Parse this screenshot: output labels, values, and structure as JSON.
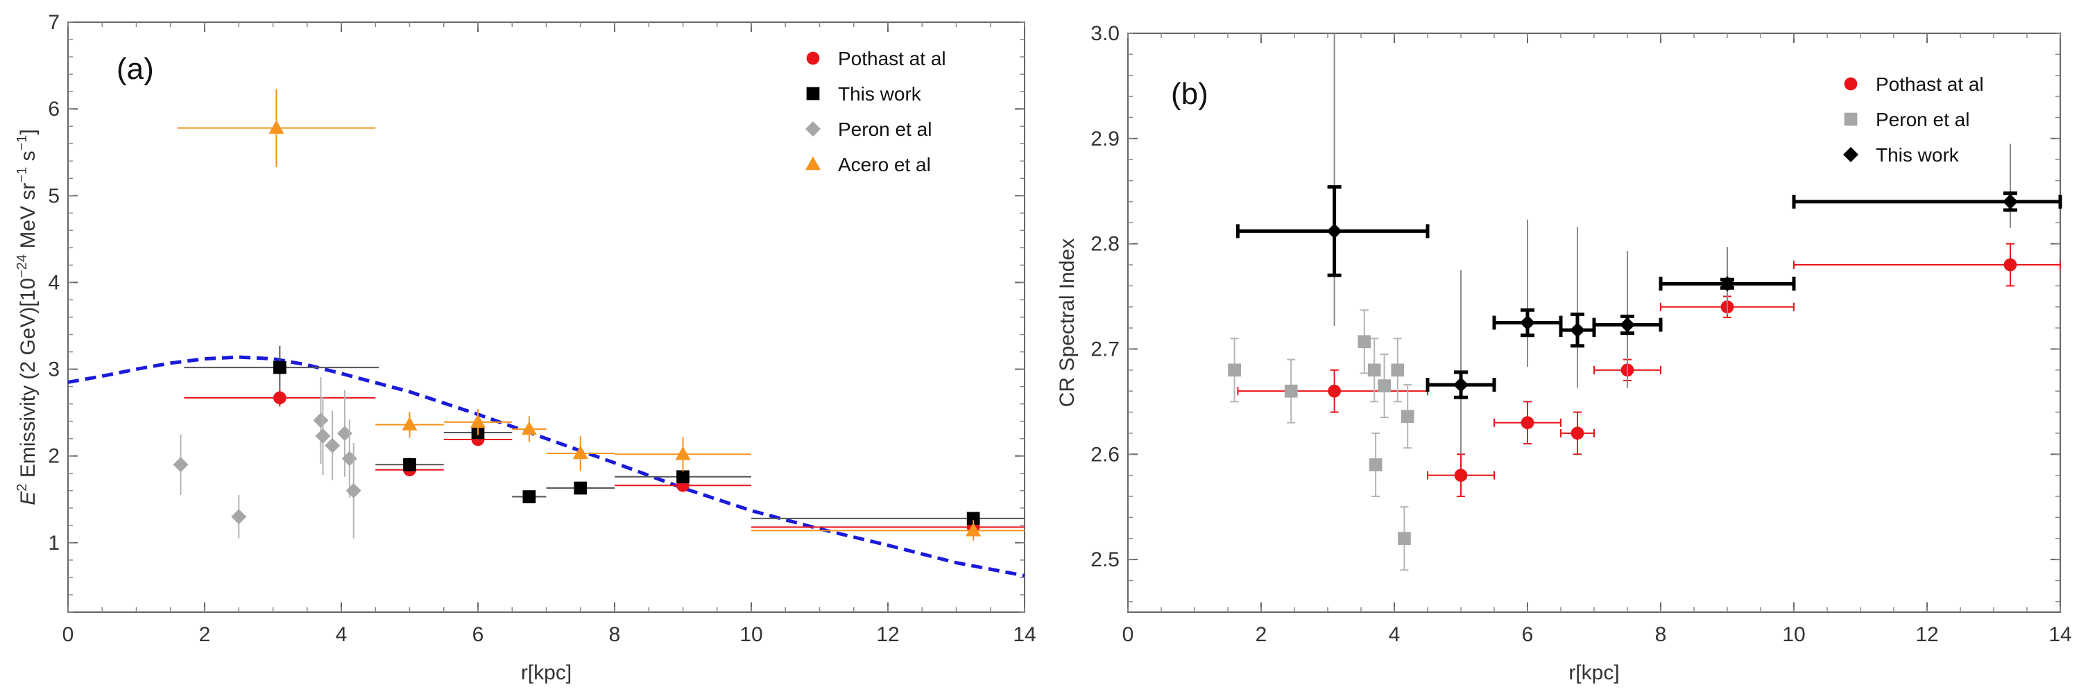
{
  "chart_data": [
    {
      "panel": "(a)",
      "type": "scatter",
      "xlabel": "r[kpc]",
      "ylabel_parts": [
        "E",
        "2",
        " Emissivity (2 GeV)[10",
        "−24",
        " MeV sr",
        "−1",
        " s",
        "−1",
        "]"
      ],
      "xlim": [
        0,
        14
      ],
      "ylim": [
        0.2,
        7
      ],
      "xticks": [
        0,
        2,
        4,
        6,
        8,
        10,
        12,
        14
      ],
      "yticks": [
        1,
        2,
        3,
        4,
        5,
        6,
        7
      ],
      "legend_position": "top-right",
      "series": [
        {
          "name": "Pothast at al",
          "marker": "circle",
          "color": "#e8141a",
          "bar_color": "#e8141a",
          "points": [
            {
              "x": 3.1,
              "y": 2.67,
              "xerr": [
                1.4,
                1.4
              ],
              "yerr": 0.1
            },
            {
              "x": 5.0,
              "y": 1.84,
              "xerr": [
                0.5,
                0.5
              ],
              "yerr": 0.05
            },
            {
              "x": 6.0,
              "y": 2.19,
              "xerr": [
                0.5,
                0.5
              ],
              "yerr": 0.05
            },
            {
              "x": 9.0,
              "y": 1.66,
              "xerr": [
                1.0,
                1.0
              ],
              "yerr": 0.05
            },
            {
              "x": 13.25,
              "y": 1.18,
              "xerr": [
                3.25,
                0.75
              ],
              "yerr": 0.05
            }
          ]
        },
        {
          "name": "This work",
          "marker": "square",
          "color": "#000000",
          "bar_color": "#555555",
          "points": [
            {
              "x": 3.1,
              "y": 3.02,
              "xerr": [
                1.4,
                1.45
              ],
              "yerr": 0.25
            },
            {
              "x": 5.0,
              "y": 1.9,
              "xerr": [
                0.5,
                0.5
              ],
              "yerr": 0.08
            },
            {
              "x": 6.0,
              "y": 2.27,
              "xerr": [
                0.5,
                0.5
              ],
              "yerr": 0.08
            },
            {
              "x": 6.75,
              "y": 1.53,
              "xerr": [
                0.25,
                0.25
              ],
              "yerr": 0.04
            },
            {
              "x": 7.5,
              "y": 1.63,
              "xerr": [
                0.5,
                0.5
              ],
              "yerr": 0.04
            },
            {
              "x": 9.0,
              "y": 1.76,
              "xerr": [
                1.0,
                1.0
              ],
              "yerr": 0.08
            },
            {
              "x": 13.25,
              "y": 1.28,
              "xerr": [
                3.25,
                0.75
              ],
              "yerr": 0.04
            }
          ]
        },
        {
          "name": "Peron et al",
          "marker": "diamond",
          "color": "#a6a6a6",
          "bar_color": "#b4b4b4",
          "points": [
            {
              "x": 1.65,
              "y": 1.9,
              "xerr": [
                0,
                0
              ],
              "yerr": 0.35
            },
            {
              "x": 2.5,
              "y": 1.3,
              "xerr": [
                0,
                0
              ],
              "yerr": 0.25
            },
            {
              "x": 3.7,
              "y": 2.41,
              "xerr": [
                0,
                0
              ],
              "yerr": 0.5
            },
            {
              "x": 3.73,
              "y": 2.23,
              "xerr": [
                0,
                0
              ],
              "yerr": 0.45
            },
            {
              "x": 3.87,
              "y": 2.12,
              "xerr": [
                0,
                0
              ],
              "yerr": 0.4
            },
            {
              "x": 4.05,
              "y": 2.26,
              "xerr": [
                0,
                0
              ],
              "yerr": 0.5
            },
            {
              "x": 4.12,
              "y": 1.97,
              "xerr": [
                0,
                0
              ],
              "yerr": 0.45
            },
            {
              "x": 4.18,
              "y": 1.6,
              "xerr": [
                0,
                0
              ],
              "yerr": 0.55
            }
          ]
        },
        {
          "name": "Acero et al",
          "marker": "triangle",
          "color": "#f7941d",
          "bar_color": "#f7941d",
          "points": [
            {
              "x": 3.05,
              "y": 5.78,
              "xerr": [
                1.45,
                1.45
              ],
              "yerr": 0.45
            },
            {
              "x": 5.0,
              "y": 2.36,
              "xerr": [
                0.5,
                0.5
              ],
              "yerr": 0.15
            },
            {
              "x": 6.0,
              "y": 2.39,
              "xerr": [
                0.5,
                0.5
              ],
              "yerr": 0.15
            },
            {
              "x": 6.75,
              "y": 2.31,
              "xerr": [
                0.25,
                0.25
              ],
              "yerr": 0.15
            },
            {
              "x": 7.5,
              "y": 2.03,
              "xerr": [
                0.5,
                0.5
              ],
              "yerr": 0.2
            },
            {
              "x": 9.0,
              "y": 2.02,
              "xerr": [
                1.0,
                1.0
              ],
              "yerr": 0.2
            },
            {
              "x": 13.25,
              "y": 1.14,
              "xerr": [
                3.25,
                0.75
              ],
              "yerr": 0.12
            }
          ]
        }
      ],
      "model_curve": {
        "style": "dashed",
        "color": "#1a1adb",
        "x": [
          0,
          0.5,
          1,
          1.5,
          2,
          2.5,
          3,
          3.5,
          4,
          5,
          6,
          7,
          8,
          9,
          10,
          11,
          12,
          13,
          14
        ],
        "y": [
          2.85,
          2.92,
          3.0,
          3.07,
          3.12,
          3.14,
          3.12,
          3.05,
          2.95,
          2.74,
          2.48,
          2.2,
          1.92,
          1.63,
          1.37,
          1.16,
          0.97,
          0.77,
          0.62
        ]
      }
    },
    {
      "panel": "(b)",
      "type": "scatter",
      "xlabel": "r[kpc]",
      "ylabel": "CR Spectral Index",
      "xlim": [
        0,
        14
      ],
      "ylim": [
        2.45,
        3.0
      ],
      "xticks": [
        0,
        2,
        4,
        6,
        8,
        10,
        12,
        14
      ],
      "yticks": [
        2.5,
        2.6,
        2.7,
        2.8,
        2.9,
        3.0
      ],
      "legend_position": "top-right",
      "series": [
        {
          "name": "Pothast at al",
          "marker": "circle",
          "color": "#e8141a",
          "bar_color": "#e8141a",
          "points": [
            {
              "x": 3.1,
              "y": 2.66,
              "xerr": [
                1.45,
                1.4
              ],
              "yerr": 0.02
            },
            {
              "x": 5.0,
              "y": 2.58,
              "xerr": [
                0.5,
                0.5
              ],
              "yerr": 0.02
            },
            {
              "x": 6.0,
              "y": 2.63,
              "xerr": [
                0.5,
                0.5
              ],
              "yerr": 0.02
            },
            {
              "x": 6.75,
              "y": 2.62,
              "xerr": [
                0.25,
                0.25
              ],
              "yerr": 0.02
            },
            {
              "x": 7.5,
              "y": 2.68,
              "xerr": [
                0.5,
                0.5
              ],
              "yerr": 0.01
            },
            {
              "x": 9.0,
              "y": 2.74,
              "xerr": [
                1.0,
                1.0
              ],
              "yerr": 0.01
            },
            {
              "x": 13.25,
              "y": 2.78,
              "xerr": [
                3.25,
                0.75
              ],
              "yerr": 0.02
            }
          ]
        },
        {
          "name": "Peron et al",
          "marker": "square",
          "color": "#a6a6a6",
          "bar_color": "#b4b4b4",
          "points": [
            {
              "x": 1.6,
              "y": 2.68,
              "xerr": [
                0,
                0
              ],
              "yerr": 0.03
            },
            {
              "x": 2.45,
              "y": 2.66,
              "xerr": [
                0,
                0
              ],
              "yerr": 0.03
            },
            {
              "x": 3.55,
              "y": 2.707,
              "xerr": [
                0,
                0
              ],
              "yerr": 0.03
            },
            {
              "x": 3.7,
              "y": 2.68,
              "xerr": [
                0,
                0
              ],
              "yerr": 0.03
            },
            {
              "x": 3.72,
              "y": 2.59,
              "xerr": [
                0,
                0
              ],
              "yerr": 0.03
            },
            {
              "x": 3.85,
              "y": 2.665,
              "xerr": [
                0,
                0
              ],
              "yerr": 0.03
            },
            {
              "x": 4.05,
              "y": 2.68,
              "xerr": [
                0,
                0
              ],
              "yerr": 0.03
            },
            {
              "x": 4.15,
              "y": 2.52,
              "xerr": [
                0,
                0
              ],
              "yerr": 0.03
            },
            {
              "x": 4.2,
              "y": 2.636,
              "xerr": [
                0,
                0
              ],
              "yerr": 0.03
            }
          ]
        },
        {
          "name": "This work",
          "marker": "diamond",
          "color": "#000000",
          "bar_color": "#000000",
          "grey_bars": [
            {
              "x": 3.1,
              "y_low": 2.722,
              "y_high": 3.0
            },
            {
              "x": 5.0,
              "y_low": 2.6,
              "y_high": 2.775
            },
            {
              "x": 6.0,
              "y_low": 2.683,
              "y_high": 2.823
            },
            {
              "x": 6.75,
              "y_low": 2.663,
              "y_high": 2.816
            },
            {
              "x": 7.5,
              "y_low": 2.663,
              "y_high": 2.793
            },
            {
              "x": 9.0,
              "y_low": 2.733,
              "y_high": 2.797
            },
            {
              "x": 13.25,
              "y_low": 2.815,
              "y_high": 2.895
            }
          ],
          "points": [
            {
              "x": 3.1,
              "y": 2.812,
              "xerr": [
                1.45,
                1.4
              ],
              "yerr": 0.042
            },
            {
              "x": 5.0,
              "y": 2.666,
              "xerr": [
                0.5,
                0.5
              ],
              "yerr": 0.012
            },
            {
              "x": 6.0,
              "y": 2.725,
              "xerr": [
                0.5,
                0.5
              ],
              "yerr": 0.012
            },
            {
              "x": 6.75,
              "y": 2.718,
              "xerr": [
                0.25,
                0.25
              ],
              "yerr": 0.015
            },
            {
              "x": 7.5,
              "y": 2.723,
              "xerr": [
                0.5,
                0.5
              ],
              "yerr": 0.008
            },
            {
              "x": 9.0,
              "y": 2.762,
              "xerr": [
                1.0,
                1.0
              ],
              "yerr": 0.004
            },
            {
              "x": 13.25,
              "y": 2.84,
              "xerr": [
                3.25,
                0.75
              ],
              "yerr": 0.008
            }
          ]
        }
      ]
    }
  ]
}
